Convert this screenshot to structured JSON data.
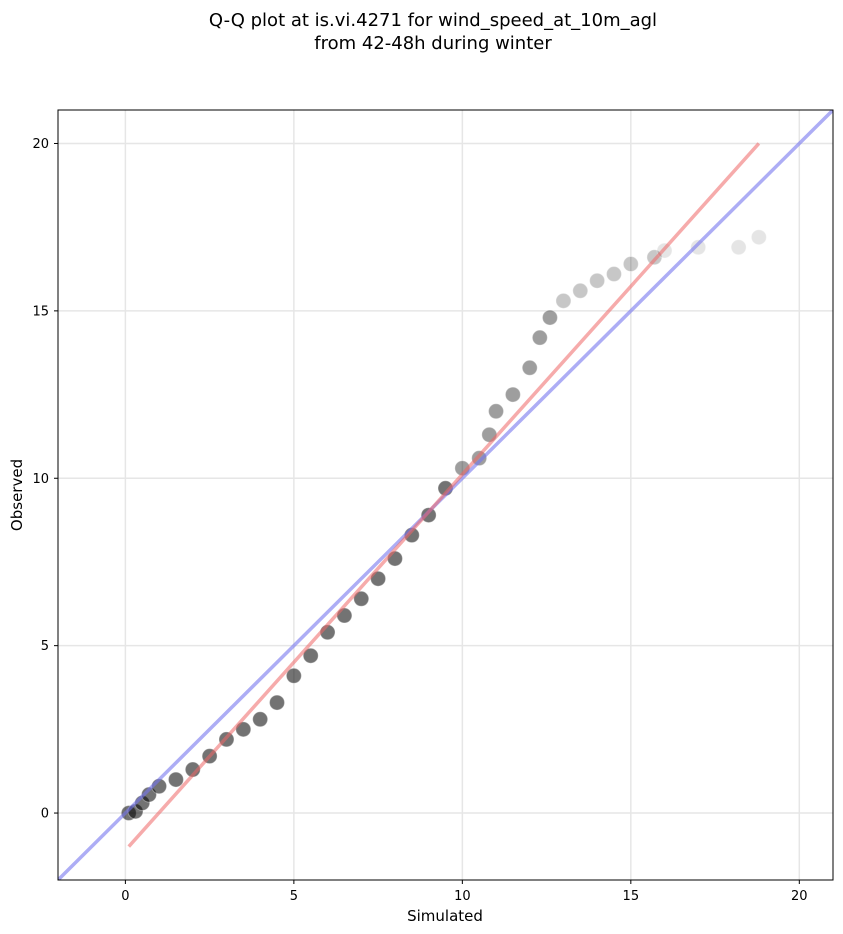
{
  "chart_data": {
    "type": "scatter",
    "title": "Q-Q plot at is.vi.4271 for wind_speed_at_10m_agl",
    "subtitle": "from 42-48h during winter",
    "xlabel": "Simulated",
    "ylabel": "Observed",
    "xlim": [
      -2,
      21
    ],
    "ylim": [
      -2,
      21
    ],
    "xticks": [
      0,
      5,
      10,
      15,
      20
    ],
    "yticks": [
      0,
      5,
      10,
      15,
      20
    ],
    "grid": true,
    "marker_color": "#000000",
    "identity_line": {
      "from": [
        -2,
        -2
      ],
      "to": [
        21,
        21
      ],
      "color": "#7777ee"
    },
    "fit_line": {
      "from": [
        0.1,
        -1.0
      ],
      "to": [
        18.8,
        20.0
      ],
      "color": "#ee6666"
    },
    "quantiles": [
      [
        0.1,
        0.0
      ],
      [
        0.3,
        0.05
      ],
      [
        0.5,
        0.3
      ],
      [
        0.7,
        0.55
      ],
      [
        1.0,
        0.8
      ],
      [
        1.5,
        1.0
      ],
      [
        2.0,
        1.3
      ],
      [
        2.5,
        1.7
      ],
      [
        3.0,
        2.2
      ],
      [
        3.5,
        2.5
      ],
      [
        4.0,
        2.8
      ],
      [
        4.5,
        3.3
      ],
      [
        5.0,
        4.1
      ],
      [
        5.5,
        4.7
      ],
      [
        6.0,
        5.4
      ],
      [
        6.5,
        5.9
      ],
      [
        7.0,
        6.4
      ],
      [
        7.5,
        7.0
      ],
      [
        8.0,
        7.6
      ],
      [
        8.5,
        8.3
      ],
      [
        9.0,
        8.9
      ],
      [
        9.5,
        9.7
      ],
      [
        10.0,
        10.3
      ],
      [
        10.5,
        10.6
      ],
      [
        10.8,
        11.3
      ],
      [
        11.0,
        12.0
      ],
      [
        11.5,
        12.5
      ],
      [
        12.0,
        13.3
      ],
      [
        12.3,
        14.2
      ],
      [
        12.6,
        14.8
      ],
      [
        13.0,
        15.3
      ],
      [
        13.5,
        15.6
      ],
      [
        14.0,
        15.9
      ],
      [
        14.5,
        16.1
      ],
      [
        15.0,
        16.4
      ],
      [
        15.7,
        16.6
      ],
      [
        16.0,
        16.8
      ],
      [
        17.0,
        16.9
      ],
      [
        18.2,
        16.9
      ],
      [
        18.8,
        17.2
      ]
    ]
  }
}
